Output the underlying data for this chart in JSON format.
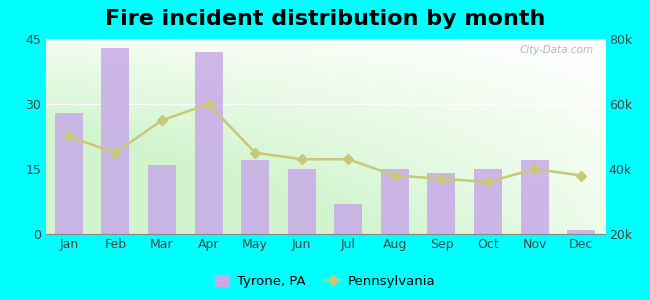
{
  "title": "Fire incident distribution by month",
  "months": [
    "Jan",
    "Feb",
    "Mar",
    "Apr",
    "May",
    "Jun",
    "Jul",
    "Aug",
    "Sep",
    "Oct",
    "Nov",
    "Dec"
  ],
  "tyrone_values": [
    28,
    43,
    16,
    42,
    17,
    15,
    7,
    15,
    14,
    15,
    17,
    1
  ],
  "pa_values": [
    50000,
    45000,
    55000,
    60000,
    45000,
    43000,
    43000,
    38000,
    37000,
    36000,
    40000,
    38000
  ],
  "bar_color": "#c8aae8",
  "line_color": "#c8c878",
  "left_ylim": [
    0,
    45
  ],
  "right_ylim": [
    20000,
    80000
  ],
  "left_yticks": [
    0,
    15,
    30,
    45
  ],
  "right_yticks": [
    20000,
    40000,
    60000,
    80000
  ],
  "right_yticklabels": [
    "20k",
    "40k",
    "60k",
    "80k"
  ],
  "background_color": "#00ffff",
  "title_fontsize": 16,
  "tick_fontsize": 9,
  "legend_labels": [
    "Tyrone, PA",
    "Pennsylvania"
  ],
  "watermark": "City-Data.com"
}
